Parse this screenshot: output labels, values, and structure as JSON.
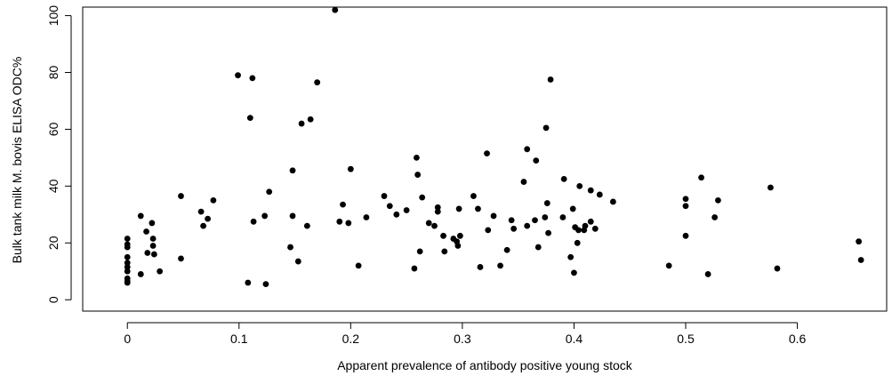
{
  "chart_data": {
    "type": "scatter",
    "xlabel": "Apparent prevalence of antibody positive young stock",
    "ylabel": "Bulk tank milk M. bovis ELISA ODC%",
    "xlim": [
      -0.04,
      0.68
    ],
    "ylim": [
      -4,
      103
    ],
    "x_ticks": [
      0,
      0.1,
      0.2,
      0.3,
      0.4,
      0.5,
      0.6
    ],
    "x_tick_labels": [
      "0",
      "0.1",
      "0.2",
      "0.3",
      "0.4",
      "0.5",
      "0.6"
    ],
    "y_ticks": [
      0,
      20,
      40,
      60,
      80,
      100
    ],
    "y_tick_labels": [
      "0",
      "20",
      "40",
      "60",
      "80",
      "100"
    ],
    "grid": false,
    "marker_color": "#000000",
    "points": [
      {
        "x": 0.0,
        "y": 21.5
      },
      {
        "x": 0.0,
        "y": 19.5
      },
      {
        "x": 0.0,
        "y": 18.5
      },
      {
        "x": 0.0,
        "y": 15.0
      },
      {
        "x": 0.0,
        "y": 13.0
      },
      {
        "x": 0.0,
        "y": 11.5
      },
      {
        "x": 0.0,
        "y": 10.0
      },
      {
        "x": 0.0,
        "y": 7.5
      },
      {
        "x": 0.0,
        "y": 6.5
      },
      {
        "x": 0.0,
        "y": 6.0
      },
      {
        "x": 0.012,
        "y": 29.5
      },
      {
        "x": 0.012,
        "y": 9.0
      },
      {
        "x": 0.017,
        "y": 24.0
      },
      {
        "x": 0.018,
        "y": 16.5
      },
      {
        "x": 0.022,
        "y": 27.0
      },
      {
        "x": 0.023,
        "y": 21.5
      },
      {
        "x": 0.023,
        "y": 19.0
      },
      {
        "x": 0.024,
        "y": 16.0
      },
      {
        "x": 0.029,
        "y": 10.0
      },
      {
        "x": 0.048,
        "y": 36.5
      },
      {
        "x": 0.048,
        "y": 14.5
      },
      {
        "x": 0.066,
        "y": 31.0
      },
      {
        "x": 0.068,
        "y": 26.0
      },
      {
        "x": 0.072,
        "y": 28.5
      },
      {
        "x": 0.077,
        "y": 35.0
      },
      {
        "x": 0.099,
        "y": 79.0
      },
      {
        "x": 0.108,
        "y": 6.0
      },
      {
        "x": 0.11,
        "y": 64.0
      },
      {
        "x": 0.112,
        "y": 78.0
      },
      {
        "x": 0.113,
        "y": 27.5
      },
      {
        "x": 0.123,
        "y": 29.5
      },
      {
        "x": 0.124,
        "y": 5.5
      },
      {
        "x": 0.127,
        "y": 38.0
      },
      {
        "x": 0.146,
        "y": 18.5
      },
      {
        "x": 0.148,
        "y": 45.5
      },
      {
        "x": 0.148,
        "y": 29.5
      },
      {
        "x": 0.153,
        "y": 13.5
      },
      {
        "x": 0.156,
        "y": 62.0
      },
      {
        "x": 0.161,
        "y": 26.0
      },
      {
        "x": 0.164,
        "y": 63.5
      },
      {
        "x": 0.17,
        "y": 76.5
      },
      {
        "x": 0.186,
        "y": 102.0
      },
      {
        "x": 0.19,
        "y": 27.5
      },
      {
        "x": 0.193,
        "y": 33.5
      },
      {
        "x": 0.198,
        "y": 27.0
      },
      {
        "x": 0.2,
        "y": 46.0
      },
      {
        "x": 0.207,
        "y": 12.0
      },
      {
        "x": 0.214,
        "y": 29.0
      },
      {
        "x": 0.23,
        "y": 36.5
      },
      {
        "x": 0.235,
        "y": 33.0
      },
      {
        "x": 0.241,
        "y": 30.0
      },
      {
        "x": 0.25,
        "y": 31.5
      },
      {
        "x": 0.257,
        "y": 11.0
      },
      {
        "x": 0.259,
        "y": 50.0
      },
      {
        "x": 0.26,
        "y": 44.0
      },
      {
        "x": 0.262,
        "y": 17.0
      },
      {
        "x": 0.264,
        "y": 36.0
      },
      {
        "x": 0.27,
        "y": 27.0
      },
      {
        "x": 0.275,
        "y": 26.0
      },
      {
        "x": 0.278,
        "y": 32.5
      },
      {
        "x": 0.278,
        "y": 31.0
      },
      {
        "x": 0.283,
        "y": 22.5
      },
      {
        "x": 0.284,
        "y": 17.0
      },
      {
        "x": 0.292,
        "y": 21.5
      },
      {
        "x": 0.295,
        "y": 20.5
      },
      {
        "x": 0.296,
        "y": 19.0
      },
      {
        "x": 0.297,
        "y": 32.0
      },
      {
        "x": 0.298,
        "y": 22.5
      },
      {
        "x": 0.31,
        "y": 36.5
      },
      {
        "x": 0.314,
        "y": 32.0
      },
      {
        "x": 0.316,
        "y": 11.5
      },
      {
        "x": 0.322,
        "y": 51.5
      },
      {
        "x": 0.323,
        "y": 24.5
      },
      {
        "x": 0.328,
        "y": 29.5
      },
      {
        "x": 0.334,
        "y": 12.0
      },
      {
        "x": 0.34,
        "y": 17.5
      },
      {
        "x": 0.344,
        "y": 28.0
      },
      {
        "x": 0.346,
        "y": 25.0
      },
      {
        "x": 0.355,
        "y": 41.5
      },
      {
        "x": 0.358,
        "y": 53.0
      },
      {
        "x": 0.358,
        "y": 26.0
      },
      {
        "x": 0.365,
        "y": 28.0
      },
      {
        "x": 0.366,
        "y": 49.0
      },
      {
        "x": 0.368,
        "y": 18.5
      },
      {
        "x": 0.374,
        "y": 29.0
      },
      {
        "x": 0.375,
        "y": 60.5
      },
      {
        "x": 0.376,
        "y": 34.0
      },
      {
        "x": 0.377,
        "y": 23.5
      },
      {
        "x": 0.379,
        "y": 77.5
      },
      {
        "x": 0.39,
        "y": 29.0
      },
      {
        "x": 0.391,
        "y": 42.5
      },
      {
        "x": 0.397,
        "y": 15.0
      },
      {
        "x": 0.399,
        "y": 32.0
      },
      {
        "x": 0.4,
        "y": 9.5
      },
      {
        "x": 0.401,
        "y": 25.5
      },
      {
        "x": 0.403,
        "y": 20.0
      },
      {
        "x": 0.404,
        "y": 24.5
      },
      {
        "x": 0.405,
        "y": 40.0
      },
      {
        "x": 0.409,
        "y": 24.5
      },
      {
        "x": 0.41,
        "y": 26.0
      },
      {
        "x": 0.415,
        "y": 38.5
      },
      {
        "x": 0.415,
        "y": 27.5
      },
      {
        "x": 0.419,
        "y": 25.0
      },
      {
        "x": 0.423,
        "y": 37.0
      },
      {
        "x": 0.435,
        "y": 34.5
      },
      {
        "x": 0.485,
        "y": 12.0
      },
      {
        "x": 0.5,
        "y": 35.5
      },
      {
        "x": 0.5,
        "y": 33.0
      },
      {
        "x": 0.5,
        "y": 22.5
      },
      {
        "x": 0.514,
        "y": 43.0
      },
      {
        "x": 0.52,
        "y": 9.0
      },
      {
        "x": 0.526,
        "y": 29.0
      },
      {
        "x": 0.529,
        "y": 35.0
      },
      {
        "x": 0.576,
        "y": 39.5
      },
      {
        "x": 0.582,
        "y": 11.0
      },
      {
        "x": 0.655,
        "y": 20.5
      },
      {
        "x": 0.657,
        "y": 14.0
      }
    ]
  }
}
